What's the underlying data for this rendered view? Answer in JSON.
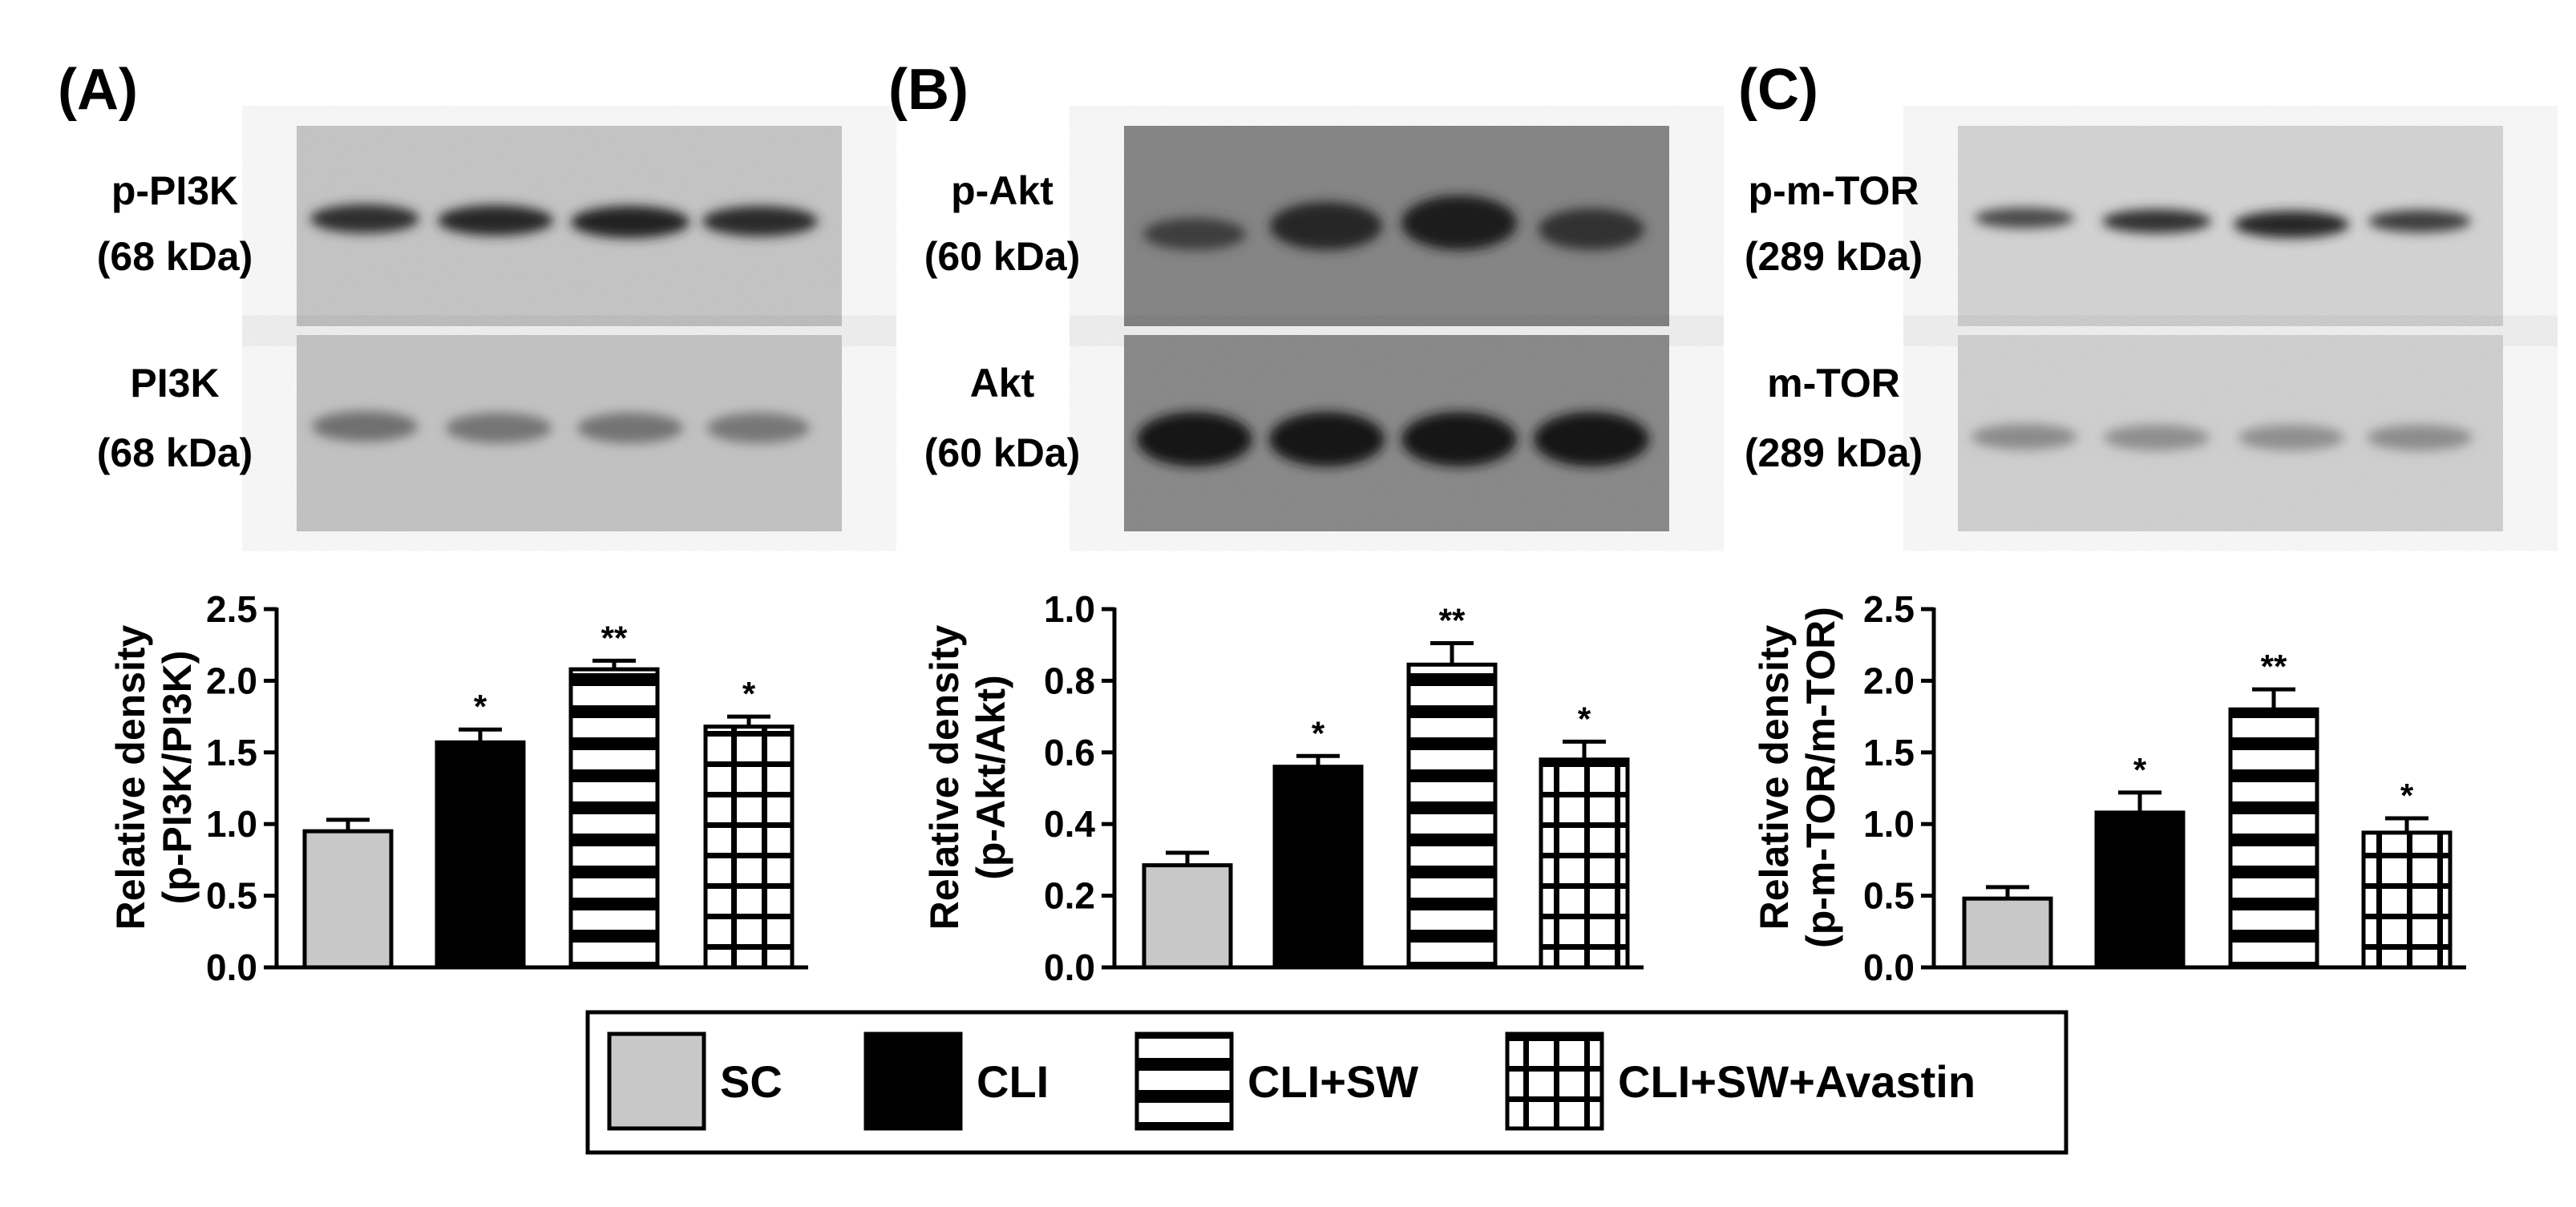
{
  "panels": [
    {
      "id": "A",
      "panel_label": "(A)",
      "blots": [
        {
          "protein": "p-PI3K",
          "size": "(68 kDa)"
        },
        {
          "protein": "PI3K",
          "size": "(68 kDa)"
        }
      ]
    },
    {
      "id": "B",
      "panel_label": "(B)",
      "blots": [
        {
          "protein": "p-Akt",
          "size": "(60 kDa)"
        },
        {
          "protein": "Akt",
          "size": "(60 kDa)"
        }
      ]
    },
    {
      "id": "C",
      "panel_label": "(C)",
      "blots": [
        {
          "protein": "p-m-TOR",
          "size": "(289 kDa)"
        },
        {
          "protein": "m-TOR",
          "size": "(289 kDa)"
        }
      ]
    }
  ],
  "legend": {
    "position": "bottom-center",
    "items": [
      {
        "label": "SC",
        "pattern": "solid-gray"
      },
      {
        "label": "CLI",
        "pattern": "solid-black"
      },
      {
        "label": "CLI+SW",
        "pattern": "horizontal-stripes"
      },
      {
        "label": "CLI+SW+Avastin",
        "pattern": "grid"
      }
    ]
  },
  "colors": {
    "sc": "#c8c8c8",
    "cli": "#000000",
    "outline": "#000000",
    "blot_bg": "#c9c9c9"
  },
  "chart_data": [
    {
      "type": "bar",
      "panel": "A",
      "categories": [
        "SC",
        "CLI",
        "CLI+SW",
        "CLI+SW+Avastin"
      ],
      "values": [
        0.95,
        1.57,
        2.08,
        1.68
      ],
      "errors": [
        0.08,
        0.09,
        0.06,
        0.07
      ],
      "significance": [
        "",
        "*",
        "**",
        "*"
      ],
      "ylabel_line1": "Relative density",
      "ylabel_line2": "(p-PI3K/PI3K)",
      "ylim": [
        0,
        2.5
      ],
      "yticks": [
        "0.0",
        "0.5",
        "1.0",
        "1.5",
        "2.0",
        "2.5"
      ],
      "ytick_values": [
        0,
        0.5,
        1.0,
        1.5,
        2.0,
        2.5
      ],
      "grid": false
    },
    {
      "type": "bar",
      "panel": "B",
      "categories": [
        "SC",
        "CLI",
        "CLI+SW",
        "CLI+SW+Avastin"
      ],
      "values": [
        0.285,
        0.56,
        0.845,
        0.58
      ],
      "errors": [
        0.035,
        0.03,
        0.06,
        0.05
      ],
      "significance": [
        "",
        "*",
        "**",
        "*"
      ],
      "ylabel_line1": "Relative density",
      "ylabel_line2": "(p-Akt/Akt)",
      "ylim": [
        0,
        1.0
      ],
      "yticks": [
        "0.0",
        "0.2",
        "0.4",
        "0.6",
        "0.8",
        "1.0"
      ],
      "ytick_values": [
        0,
        0.2,
        0.4,
        0.6,
        0.8,
        1.0
      ],
      "grid": false
    },
    {
      "type": "bar",
      "panel": "C",
      "categories": [
        "SC",
        "CLI",
        "CLI+SW",
        "CLI+SW+Avastin"
      ],
      "values": [
        0.48,
        1.08,
        1.8,
        0.94
      ],
      "errors": [
        0.08,
        0.14,
        0.14,
        0.1
      ],
      "significance": [
        "",
        "*",
        "**",
        "*"
      ],
      "ylabel_line1": "Relative density",
      "ylabel_line2": "(p-m-TOR/m-TOR)",
      "ylim": [
        0,
        2.5
      ],
      "yticks": [
        "0.0",
        "0.5",
        "1.0",
        "1.5",
        "2.0",
        "2.5"
      ],
      "ytick_values": [
        0,
        0.5,
        1.0,
        1.5,
        2.0,
        2.5
      ],
      "grid": false
    }
  ]
}
